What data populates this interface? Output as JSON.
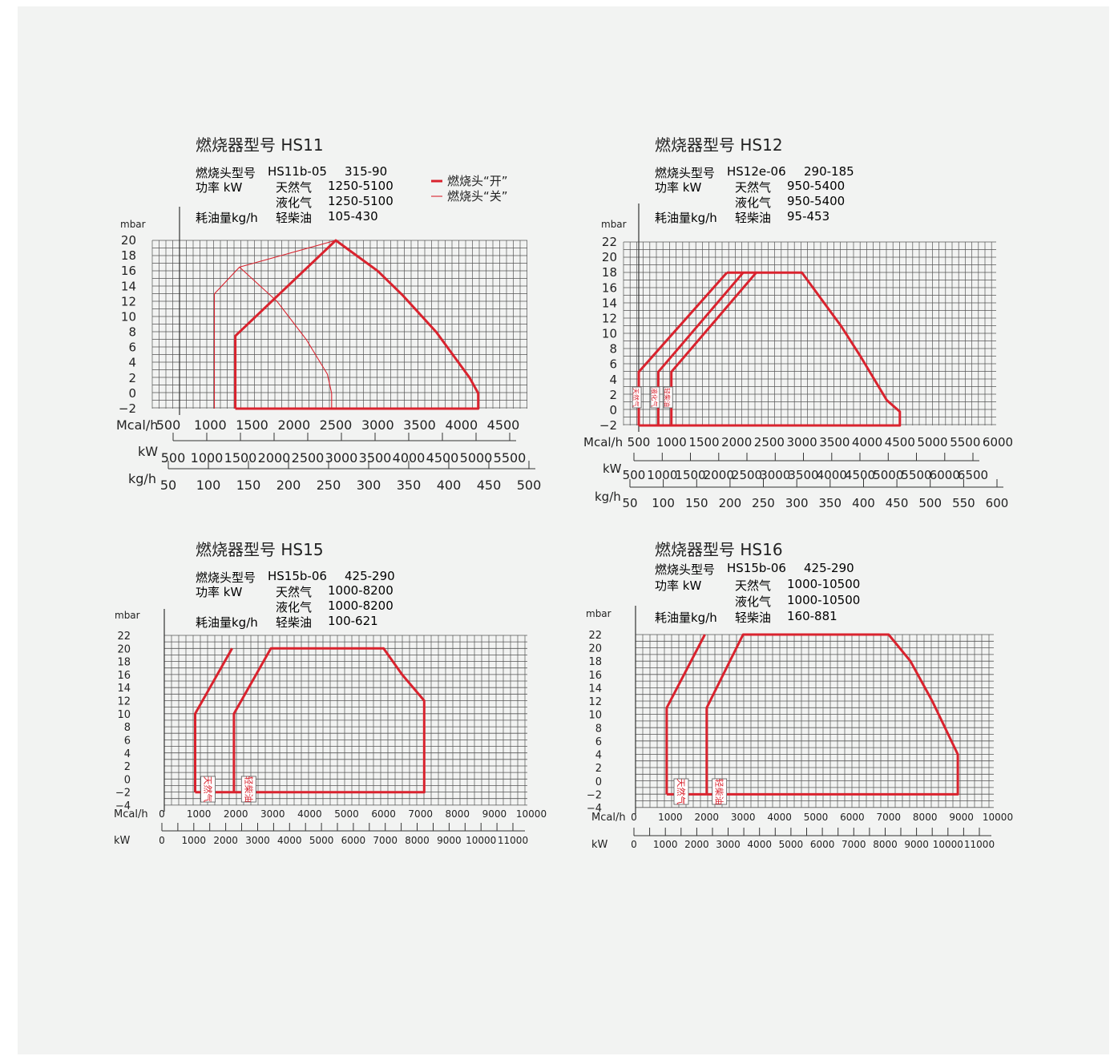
{
  "chart_data": [
    {
      "type": "area",
      "title": "燃烧器型号  HS11",
      "header": [
        [
          "燃烧头型号",
          "HS11b-05",
          "315-90"
        ],
        [
          "功率 kW",
          "天然气",
          "1250-5100"
        ],
        [
          "",
          "液化气",
          "1250-5100"
        ],
        [
          "耗油量kg/h",
          "轻柴油",
          "105-430"
        ]
      ],
      "ylabel": "mbar",
      "y_ticks": [
        "20",
        "18",
        "16",
        "14",
        "12",
        "10",
        "8",
        "6",
        "4",
        "2",
        "0",
        "−2"
      ],
      "ylim": [
        -2,
        20
      ],
      "axes": [
        {
          "label": "Mcal/h",
          "ticks": [
            "500",
            "1000",
            "1500",
            "2000",
            "2500",
            "3000",
            "3500",
            "4000",
            "4500"
          ]
        },
        {
          "label": "kW",
          "ticks": [
            "500",
            "1000",
            "1500",
            "2000",
            "2500",
            "3000",
            "3500",
            "4000",
            "4500",
            "5000",
            "5500"
          ]
        },
        {
          "label": "kg/h",
          "ticks": [
            "50",
            "100",
            "150",
            "200",
            "250",
            "300",
            "350",
            "400",
            "450",
            "500"
          ]
        }
      ],
      "xlim_mcal": [
        500,
        4500
      ],
      "legend": [
        {
          "label": "燃烧头“开”",
          "style": "thick"
        },
        {
          "label": "燃烧头“关”",
          "style": "thin"
        }
      ],
      "series": [
        {
          "name": "燃烧头“开”",
          "style": "thick",
          "points": [
            [
              1300,
              -2
            ],
            [
              1300,
              7.5
            ],
            [
              2500,
              20
            ],
            [
              2650,
              18.8
            ],
            [
              3000,
              16
            ],
            [
              3300,
              12.8
            ],
            [
              3700,
              8
            ],
            [
              4100,
              2
            ],
            [
              4200,
              0
            ],
            [
              4200,
              -2
            ],
            [
              1300,
              -2
            ]
          ]
        },
        {
          "name": "燃烧头“关”",
          "style": "thin",
          "points": [
            [
              1050,
              -2
            ],
            [
              1050,
              13
            ],
            [
              1350,
              16.5
            ],
            [
              2500,
              20
            ]
          ]
        },
        {
          "name": "燃烧头“关”",
          "style": "thin",
          "points": [
            [
              1350,
              16.5
            ],
            [
              1800,
              12
            ],
            [
              2150,
              7
            ],
            [
              2400,
              2.5
            ],
            [
              2450,
              0
            ],
            [
              2450,
              -2
            ]
          ]
        }
      ],
      "colors": {
        "line": "#d9232e",
        "grid": "#555555"
      }
    },
    {
      "type": "area",
      "title": "燃烧器型号  HS12",
      "header": [
        [
          "燃烧头型号",
          "HS12e-06",
          "290-185"
        ],
        [
          "功率 kW",
          "天然气",
          "950-5400"
        ],
        [
          "",
          "液化气",
          "950-5400"
        ],
        [
          "耗油量kg/h",
          "轻柴油",
          "95-453"
        ]
      ],
      "ylabel": "mbar",
      "y_ticks": [
        "22",
        "20",
        "18",
        "16",
        "14",
        "12",
        "10",
        "8",
        "6",
        "4",
        "2",
        "0",
        "−2"
      ],
      "ylim": [
        -2,
        22
      ],
      "axes": [
        {
          "label": "Mcal/h",
          "ticks": [
            "500",
            "1000",
            "1500",
            "2000",
            "2500",
            "3000",
            "3500",
            "4000",
            "4500",
            "5000",
            "5500",
            "6000"
          ]
        },
        {
          "label": "kW",
          "ticks": [
            "500",
            "1000",
            "1500",
            "2000",
            "2500",
            "3000",
            "3500",
            "4000",
            "4500",
            "5000",
            "5500",
            "6000",
            "6500"
          ]
        },
        {
          "label": "kg/h",
          "ticks": [
            "50",
            "100",
            "150",
            "200",
            "250",
            "300",
            "350",
            "400",
            "450",
            "500",
            "550",
            "600"
          ]
        }
      ],
      "xlim_mcal": [
        500,
        6000
      ],
      "tags": [
        {
          "text": "天然气",
          "x": 470
        },
        {
          "text": "液化气",
          "x": 750
        },
        {
          "text": "轻柴油",
          "x": 950
        }
      ],
      "series": [
        {
          "name": "天然气",
          "points": [
            [
              500,
              -2
            ],
            [
              500,
              5
            ],
            [
              1850,
              18
            ]
          ]
        },
        {
          "name": "液化气",
          "points": [
            [
              800,
              -2
            ],
            [
              800,
              5
            ],
            [
              2100,
              18
            ]
          ]
        },
        {
          "name": "轻柴油",
          "points": [
            [
              1000,
              -2
            ],
            [
              1000,
              5
            ],
            [
              2300,
              18
            ],
            [
              3000,
              18
            ],
            [
              3600,
              11
            ],
            [
              3900,
              7
            ],
            [
              4300,
              1.3
            ],
            [
              4500,
              -0.2
            ],
            [
              4500,
              -2
            ],
            [
              500,
              -2
            ]
          ]
        },
        {
          "name": "",
          "points": [
            [
              1850,
              18
            ],
            [
              2300,
              18
            ]
          ]
        }
      ],
      "colors": {
        "line": "#d9232e",
        "grid": "#555555"
      }
    },
    {
      "type": "area",
      "title": "燃烧器型号  HS15",
      "header": [
        [
          "燃烧头型号",
          "HS15b-06",
          "425-290"
        ],
        [
          "功率 kW",
          "天然气",
          "1000-8200"
        ],
        [
          "",
          "液化气",
          "1000-8200"
        ],
        [
          "耗油量kg/h",
          "轻柴油",
          "100-621"
        ]
      ],
      "ylabel": "mbar",
      "y_ticks": [
        "22",
        "20",
        "18",
        "16",
        "14",
        "12",
        "10",
        "8",
        "6",
        "4",
        "2",
        "0",
        "−2",
        "−4"
      ],
      "ylim": [
        -4,
        22
      ],
      "axes": [
        {
          "label": "Mcal/h",
          "ticks": [
            "0",
            "1000",
            "2000",
            "3000",
            "4000",
            "5000",
            "6000",
            "7000",
            "8000",
            "9000",
            "10000"
          ]
        },
        {
          "label": "kW",
          "ticks": [
            "0",
            "1000",
            "2000",
            "3000",
            "4000",
            "5000",
            "6000",
            "7000",
            "8000",
            "9000",
            "10000",
            "11000"
          ]
        }
      ],
      "xlim_mcal": [
        0,
        10000
      ],
      "tags": [
        {
          "text": "天然气",
          "x": 1250
        },
        {
          "text": "轻柴油",
          "x": 2350
        }
      ],
      "series": [
        {
          "name": "天然气",
          "points": [
            [
              900,
              -2
            ],
            [
              900,
              10
            ],
            [
              1900,
              20
            ]
          ]
        },
        {
          "name": "轻柴油",
          "points": [
            [
              1950,
              -2
            ],
            [
              1950,
              10
            ],
            [
              2950,
              20
            ],
            [
              6000,
              20
            ],
            [
              6500,
              16
            ],
            [
              7100,
              12
            ],
            [
              7100,
              -2
            ],
            [
              900,
              -2
            ]
          ]
        }
      ],
      "colors": {
        "line": "#d9232e",
        "grid": "#555555"
      }
    },
    {
      "type": "area",
      "title": "燃烧器型号  HS16",
      "header": [
        [
          "燃烧头型号",
          "HS15b-06",
          "425-290"
        ],
        [
          "功率 kW",
          "天然气",
          "1000-10500"
        ],
        [
          "",
          "液化气",
          "1000-10500"
        ],
        [
          "耗油量kg/h",
          "轻柴油",
          "160-881"
        ]
      ],
      "ylabel": "mbar",
      "y_ticks": [
        "22",
        "20",
        "18",
        "16",
        "14",
        "12",
        "10",
        "8",
        "6",
        "4",
        "2",
        "0",
        "−2",
        "−4"
      ],
      "ylim": [
        -4,
        22
      ],
      "axes": [
        {
          "label": "Mcal/h",
          "ticks": [
            "0",
            "1000",
            "2000",
            "3000",
            "4000",
            "5000",
            "6000",
            "7000",
            "8000",
            "9000",
            "10000"
          ]
        },
        {
          "label": "kW",
          "ticks": [
            "0",
            "1000",
            "2000",
            "3000",
            "4000",
            "5000",
            "6000",
            "7000",
            "8000",
            "9000",
            "10000",
            "11000"
          ]
        }
      ],
      "xlim_mcal": [
        0,
        10000
      ],
      "tags": [
        {
          "text": "天然气",
          "x": 1300
        },
        {
          "text": "轻柴油",
          "x": 2350
        }
      ],
      "series": [
        {
          "name": "天然气",
          "points": [
            [
              900,
              -2
            ],
            [
              900,
              11
            ],
            [
              1950,
              22
            ]
          ]
        },
        {
          "name": "轻柴油",
          "points": [
            [
              2000,
              -2
            ],
            [
              2000,
              11
            ],
            [
              3000,
              22
            ],
            [
              7000,
              22
            ],
            [
              7600,
              18
            ],
            [
              8200,
              12
            ],
            [
              8900,
              4
            ],
            [
              8900,
              -2
            ],
            [
              900,
              -2
            ]
          ]
        }
      ],
      "colors": {
        "line": "#d9232e",
        "grid": "#555555"
      }
    }
  ]
}
